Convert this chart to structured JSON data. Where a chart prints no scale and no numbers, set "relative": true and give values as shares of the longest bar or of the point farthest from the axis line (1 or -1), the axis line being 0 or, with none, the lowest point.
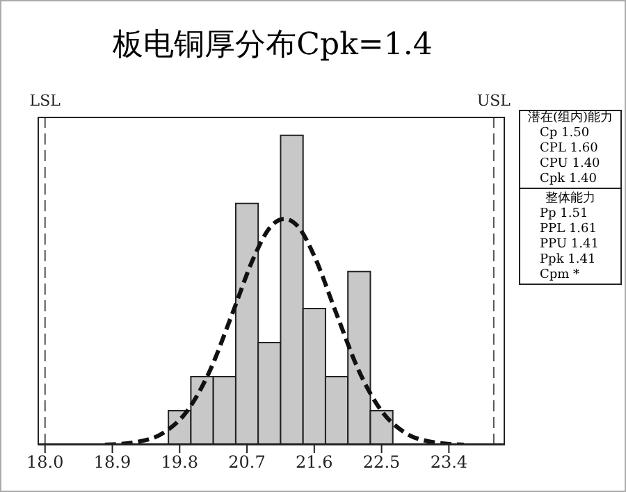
{
  "chart_data": {
    "type": "histogram",
    "title": "板电铜厚分布Cpk=1.4",
    "relative": true,
    "xlim": [
      17.9,
      24.15
    ],
    "xticks": [
      {
        "value": 18,
        "label": "18.0"
      },
      18.9,
      19.8,
      20.7,
      21.6,
      22.5,
      23.4
    ],
    "series": [
      {
        "color": "#c8c8c8",
        "bins": [
          19.65,
          19.95,
          20.25,
          20.55,
          20.85,
          21.15,
          21.45,
          21.75,
          22.05,
          22.35,
          22.65
        ],
        "values": [
          0.11,
          0.22,
          0.22,
          0.78,
          0.33,
          1,
          0.44,
          0.22,
          0.56,
          0.11
        ]
      },
      {
        "type": "line",
        "color": "#111111",
        "line_style": "dashed",
        "x": [
          18.8,
          19.2,
          19.6,
          19.9,
          20.2,
          20.5,
          20.8,
          21.0,
          21.2,
          21.4,
          21.6,
          21.9,
          22.2,
          22.5,
          22.8,
          23.2,
          23.6
        ],
        "values": [
          0,
          0.008,
          0.041,
          0.109,
          0.237,
          0.421,
          0.61,
          0.7,
          0.73,
          0.7,
          0.61,
          0.421,
          0.237,
          0.109,
          0.041,
          0.008,
          0
        ]
      }
    ],
    "ref_lines": [
      {
        "axis": "x",
        "value": 18,
        "label": "LSL",
        "line_style": "dashed",
        "color": "#555555"
      },
      {
        "axis": "x",
        "value": 24,
        "label": "USL",
        "line_style": "dashed",
        "color": "#555555"
      }
    ],
    "annotations": [
      "潜在(组内)能力",
      "Cp 1.50",
      "CPL 1.60",
      "CPU 1.40",
      "Cpk 1.40",
      "整体能力",
      "Pp 1.51",
      "PPL 1.61",
      "PPU 1.41",
      "Ppk 1.41",
      "Cpm *"
    ]
  }
}
